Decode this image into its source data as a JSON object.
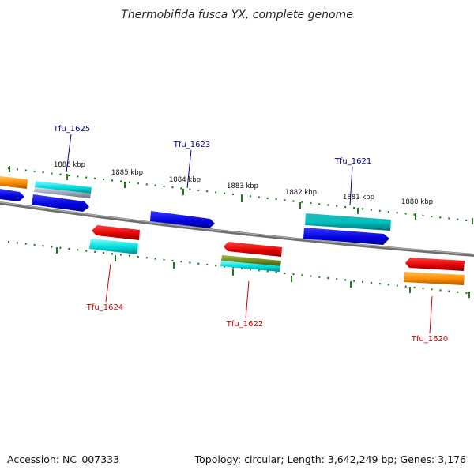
{
  "title": "Thermobifida fusca YX, complete genome",
  "footer": {
    "accession": "Accession: NC_007333",
    "summary": "Topology: circular; Length: 3,642,249 bp; Genes: 3,176"
  },
  "colors": {
    "backbone": "#7a7a7a",
    "tick": "#1d7a1d",
    "label_forward": "#00008b",
    "label_reverse": "#cc0000",
    "blue": "#1010e0",
    "cyan": "#00d0d0",
    "red": "#e00000",
    "orange": "#ff8c00",
    "olive": "#6b8e23",
    "grey": "#a0a8b8"
  },
  "kbp_labels": [
    "1886 kbp",
    "1885 kbp",
    "1884 kbp",
    "1883 kbp",
    "1882 kbp",
    "1881 kbp",
    "1880 kbp"
  ],
  "gene_labels": {
    "forward": [
      "Tfu_1625",
      "Tfu_1623",
      "Tfu_1621"
    ],
    "reverse": [
      "Tfu_1624",
      "Tfu_1622",
      "Tfu_1620"
    ]
  }
}
